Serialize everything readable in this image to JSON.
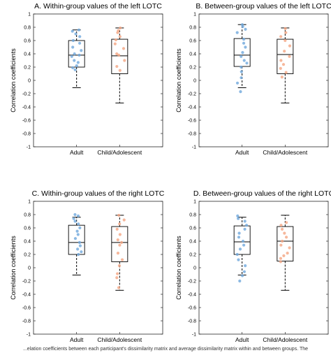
{
  "colors": {
    "adult_points": "#6fa8dc",
    "child_points": "#f4a582",
    "box": "#000000",
    "axis": "#262626"
  },
  "caption": "...elation coefficients between each participant's dissimilarity matrix and average dissimilarity matrix within and between groups. The",
  "chart_data": [
    {
      "type": "box",
      "title": "A. Within-group values of the left LOTC",
      "ylabel": "Correlation coefficients",
      "ylim": [
        -1,
        1
      ],
      "yticks": [
        "-1",
        "-0.8",
        "-0.6",
        "-0.4",
        "-0.2",
        "0",
        "0.2",
        "0.4",
        "0.6",
        "0.8",
        "1"
      ],
      "categories": [
        "Adult",
        "Child/Adolescent"
      ],
      "boxes": [
        {
          "q1": 0.2,
          "median": 0.38,
          "q3": 0.6,
          "whisker_low": -0.11,
          "whisker_high": 0.76,
          "points": [
            0.76,
            0.74,
            0.7,
            0.66,
            0.6,
            0.56,
            0.5,
            0.45,
            0.4,
            0.38,
            0.36,
            0.3,
            0.27,
            0.22,
            0.19,
            0.16
          ]
        },
        {
          "q1": 0.1,
          "median": 0.37,
          "q3": 0.62,
          "whisker_low": -0.34,
          "whisker_high": 0.79,
          "points": [
            0.79,
            0.75,
            0.72,
            0.66,
            0.61,
            0.55,
            0.48,
            0.4,
            0.38,
            0.3,
            0.21,
            0.15
          ]
        }
      ]
    },
    {
      "type": "box",
      "title": "B. Between-group values of the left LOTC",
      "ylabel": "Correlation coefficients",
      "ylim": [
        -1,
        1
      ],
      "yticks": [
        "-1",
        "-0.8",
        "-0.6",
        "-0.4",
        "-0.2",
        "0",
        "0.2",
        "0.4",
        "0.6",
        "0.8",
        "1"
      ],
      "categories": [
        "Adult",
        "Child/Adolescent"
      ],
      "boxes": [
        {
          "q1": 0.21,
          "median": 0.38,
          "q3": 0.63,
          "whisker_low": -0.11,
          "whisker_high": 0.84,
          "points": [
            0.84,
            0.81,
            0.77,
            0.72,
            0.62,
            0.56,
            0.5,
            0.42,
            0.36,
            0.3,
            0.26,
            0.2,
            0.13,
            0.04,
            -0.04,
            -0.17
          ]
        },
        {
          "q1": 0.1,
          "median": 0.39,
          "q3": 0.62,
          "whisker_low": -0.34,
          "whisker_high": 0.79,
          "points": [
            0.78,
            0.72,
            0.66,
            0.6,
            0.52,
            0.44,
            0.36,
            0.3,
            0.24,
            0.18,
            0.12,
            0.05
          ]
        }
      ]
    },
    {
      "type": "box",
      "title": "C. Within-group values of the right LOTC",
      "ylabel": "Correlation coefficients",
      "ylim": [
        -1,
        1
      ],
      "yticks": [
        "-1",
        "-0.8",
        "-0.6",
        "-0.4",
        "-0.2",
        "0",
        "0.2",
        "0.4",
        "0.6",
        "0.8",
        "1"
      ],
      "categories": [
        "Adult",
        "Child/Adolescent"
      ],
      "boxes": [
        {
          "q1": 0.2,
          "median": 0.38,
          "q3": 0.64,
          "whisker_low": -0.11,
          "whisker_high": 0.76,
          "points": [
            0.8,
            0.78,
            0.74,
            0.7,
            0.66,
            0.6,
            0.55,
            0.5,
            0.44,
            0.38,
            0.33,
            0.28,
            0.24,
            0.2
          ]
        },
        {
          "q1": 0.09,
          "median": 0.38,
          "q3": 0.62,
          "whisker_low": -0.34,
          "whisker_high": 0.79,
          "points": [
            0.79,
            0.72,
            0.66,
            0.58,
            0.5,
            0.42,
            0.38,
            0.34,
            0.22,
            0.12,
            0.03,
            -0.09,
            -0.15,
            -0.3
          ]
        }
      ]
    },
    {
      "type": "box",
      "title": "D. Between-group values of the right LOTC",
      "ylabel": "Correlation coefficients",
      "ylim": [
        -1,
        1
      ],
      "yticks": [
        "-1",
        "-0.8",
        "-0.6",
        "-0.4",
        "-0.2",
        "0",
        "0.2",
        "0.4",
        "0.6",
        "0.8",
        "1"
      ],
      "categories": [
        "Adult",
        "Child/Adolescent"
      ],
      "boxes": [
        {
          "q1": 0.2,
          "median": 0.39,
          "q3": 0.63,
          "whisker_low": -0.11,
          "whisker_high": 0.76,
          "points": [
            0.78,
            0.74,
            0.7,
            0.64,
            0.58,
            0.52,
            0.46,
            0.4,
            0.34,
            0.28,
            0.2,
            0.12,
            0.03,
            -0.06,
            -0.12,
            -0.2
          ]
        },
        {
          "q1": 0.1,
          "median": 0.4,
          "q3": 0.62,
          "whisker_low": -0.34,
          "whisker_high": 0.79,
          "points": [
            0.68,
            0.64,
            0.58,
            0.52,
            0.46,
            0.4,
            0.34,
            0.3,
            0.22,
            0.18,
            0.14,
            0.09
          ]
        }
      ]
    }
  ]
}
